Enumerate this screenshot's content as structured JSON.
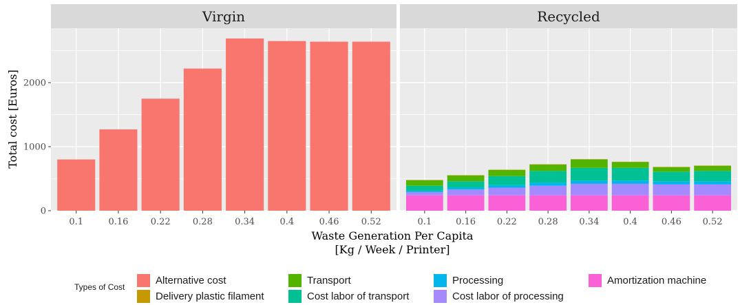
{
  "chart_data": {
    "type": "bar",
    "ylabel": "Total cost [Euros]",
    "xlabel_lines": [
      "Waste Generation Per Capita",
      "[Kg / Week / Printer]"
    ],
    "categories": [
      "0.1",
      "0.16",
      "0.22",
      "0.28",
      "0.34",
      "0.4",
      "0.46",
      "0.52"
    ],
    "y_ticks": [
      "0",
      "1000",
      "2000"
    ],
    "ylim": [
      0,
      2850
    ],
    "grid": true,
    "legend_position": "bottom",
    "legend_title": "Types of Cost",
    "legend": [
      {
        "label": "Alternative cost",
        "color": "#F8766D"
      },
      {
        "label": "Delivery plastic filament",
        "color": "#C49A00"
      },
      {
        "label": "Transport",
        "color": "#53B400"
      },
      {
        "label": "Cost labor of transport",
        "color": "#00C094"
      },
      {
        "label": "Processing",
        "color": "#00B6EB"
      },
      {
        "label": "Cost labor of processing",
        "color": "#A58AFF"
      },
      {
        "label": "Amortization machine",
        "color": "#FB61D7"
      }
    ],
    "panels": [
      {
        "title": "Virgin",
        "stacked": false,
        "series": [
          {
            "name": "Alternative cost",
            "color": "#F8766D",
            "values": [
              800,
              1270,
              1750,
              2220,
              2690,
              2650,
              2640,
              2640
            ]
          }
        ]
      },
      {
        "title": "Recycled",
        "stacked": true,
        "series": [
          {
            "name": "Amortization machine",
            "color": "#FB61D7",
            "values": [
              240,
              240,
              240,
              240,
              240,
              240,
              240,
              240
            ]
          },
          {
            "name": "Cost labor of processing",
            "color": "#A58AFF",
            "values": [
              50,
              90,
              120,
              150,
              180,
              180,
              170,
              170
            ]
          },
          {
            "name": "Processing",
            "color": "#00B6EB",
            "values": [
              20,
              30,
              40,
              50,
              50,
              50,
              50,
              50
            ]
          },
          {
            "name": "Cost labor of transport",
            "color": "#00C094",
            "values": [
              80,
              100,
              140,
              180,
              200,
              200,
              150,
              160
            ]
          },
          {
            "name": "Transport",
            "color": "#53B400",
            "values": [
              85,
              90,
              95,
              100,
              130,
              90,
              70,
              80
            ]
          },
          {
            "name": "Delivery plastic filament",
            "color": "#C49A00",
            "values": [
              5,
              5,
              5,
              5,
              5,
              5,
              5,
              5
            ]
          }
        ]
      }
    ]
  }
}
